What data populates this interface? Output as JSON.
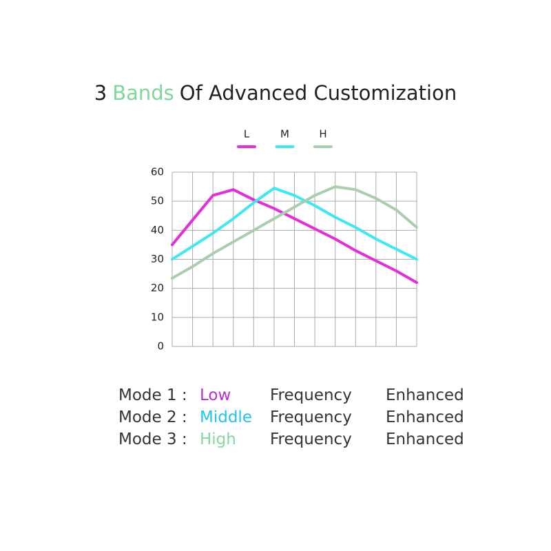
{
  "title": {
    "prefix": "3",
    "highlight": "Bands",
    "suffix": "Of Advanced Customization",
    "highlight_color": "#7fd89a"
  },
  "chart_data": {
    "type": "line",
    "categories": [
      null,
      null,
      null,
      null,
      null,
      null,
      null,
      null,
      null,
      null,
      null,
      null,
      null
    ],
    "series": [
      {
        "name": "L",
        "color": "#e22fd8",
        "values": [
          35,
          43.5,
          52,
          54,
          50.5,
          47.5,
          44,
          40.5,
          37,
          33,
          29.5,
          26,
          22
        ]
      },
      {
        "name": "M",
        "color": "#3ee8f2",
        "values": [
          30,
          34.5,
          39,
          44,
          49.5,
          54.5,
          52,
          48.5,
          44.5,
          41,
          37,
          33.5,
          30
        ]
      },
      {
        "name": "H",
        "color": "#a9cdad",
        "values": [
          23.5,
          27.5,
          32,
          36,
          40,
          44,
          48,
          52,
          55,
          54,
          51,
          47,
          41
        ]
      }
    ],
    "ylim": [
      0,
      60
    ],
    "yticks": [
      0,
      10,
      20,
      30,
      40,
      50,
      60
    ],
    "grid": true,
    "legend": "top"
  },
  "modes": [
    {
      "label": "Mode 1 :",
      "band": "Low",
      "band_color": "#b52fd2",
      "word1": "Frequency",
      "word2": "Enhanced"
    },
    {
      "label": "Mode 2 :",
      "band": "Middle",
      "band_color": "#1fc5ee",
      "word1": "Frequency",
      "word2": "Enhanced"
    },
    {
      "label": "Mode 3 :",
      "band": "High",
      "band_color": "#85d99e",
      "word1": "Frequency",
      "word2": "Enhanced"
    }
  ]
}
